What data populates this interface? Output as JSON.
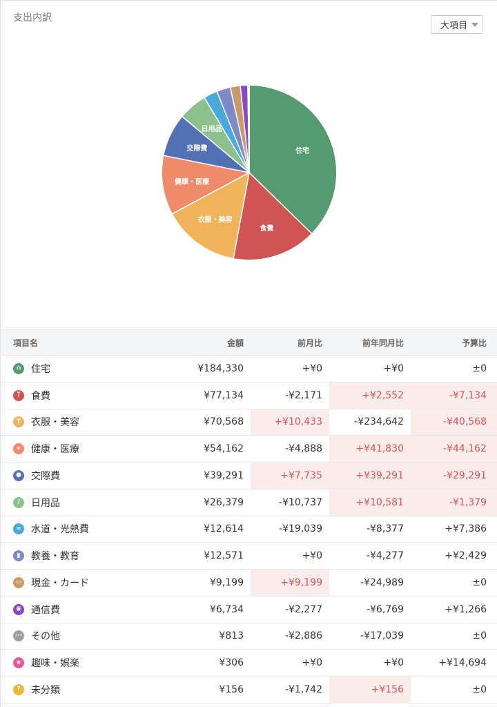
{
  "header": {
    "title": "支出内訳",
    "dropdown_label": "大項目"
  },
  "chart_data": {
    "type": "pie",
    "slices": [
      {
        "label": "住宅",
        "value": 184330,
        "color": "#569a6f"
      },
      {
        "label": "食費",
        "value": 77134,
        "color": "#cf5454"
      },
      {
        "label": "衣服・美容",
        "value": 70568,
        "color": "#efb45a"
      },
      {
        "label": "健康・医療",
        "value": 54162,
        "color": "#ef8a6a"
      },
      {
        "label": "交際費",
        "value": 39291,
        "color": "#5470b4"
      },
      {
        "label": "日用品",
        "value": 26379,
        "color": "#8cc08c"
      },
      {
        "label": "水道・光熱費",
        "value": 12614,
        "color": "#4aa8dc"
      },
      {
        "label": "教養・教育",
        "value": 12571,
        "color": "#7e89c8"
      },
      {
        "label": "現金・カード",
        "value": 9199,
        "color": "#cc9a6a"
      },
      {
        "label": "通信費",
        "value": 6734,
        "color": "#8a48c2"
      },
      {
        "label": "その他",
        "value": 813,
        "color": "#9e9e9e"
      },
      {
        "label": "趣味・娯楽",
        "value": 306,
        "color": "#e45a98"
      },
      {
        "label": "未分類",
        "value": 156,
        "color": "#f0b43c"
      }
    ],
    "shown_labels": [
      "住宅",
      "食費",
      "衣服・美容",
      "健康・医療",
      "交際費",
      "日用品"
    ]
  },
  "table": {
    "headers": {
      "name": "項目名",
      "amount": "金額",
      "mom": "前月比",
      "yoy": "前年同月比",
      "budget": "予算比"
    },
    "rows": [
      {
        "icon": "house-icon",
        "color": "#569a6f",
        "glyph": "⌂",
        "name": "住宅",
        "amount": "¥184,330",
        "mom": "+¥0",
        "mom_neg": false,
        "yoy": "+¥0",
        "yoy_neg": false,
        "budget": "±0",
        "budget_neg": false
      },
      {
        "icon": "fork-knife-icon",
        "color": "#cf5454",
        "glyph": "ᛘ",
        "name": "食費",
        "amount": "¥77,134",
        "mom": "-¥2,171",
        "mom_neg": false,
        "yoy": "+¥2,552",
        "yoy_neg": true,
        "budget": "-¥7,134",
        "budget_neg": true
      },
      {
        "icon": "shirt-icon",
        "color": "#efb45a",
        "glyph": "T",
        "name": "衣服・美容",
        "amount": "¥70,568",
        "mom": "+¥10,433",
        "mom_neg": true,
        "yoy": "-¥234,642",
        "yoy_neg": false,
        "budget": "-¥40,568",
        "budget_neg": true
      },
      {
        "icon": "medical-cross-icon",
        "color": "#ef8a6a",
        "glyph": "+",
        "name": "健康・医療",
        "amount": "¥54,162",
        "mom": "-¥4,888",
        "mom_neg": false,
        "yoy": "+¥41,830",
        "yoy_neg": true,
        "budget": "-¥44,162",
        "budget_neg": true
      },
      {
        "icon": "people-icon",
        "color": "#5470b4",
        "glyph": "●",
        "name": "交際費",
        "amount": "¥39,291",
        "mom": "+¥7,735",
        "mom_neg": true,
        "yoy": "+¥39,291",
        "yoy_neg": true,
        "budget": "-¥29,291",
        "budget_neg": true
      },
      {
        "icon": "bandage-icon",
        "color": "#8cc08c",
        "glyph": "∕",
        "name": "日用品",
        "amount": "¥26,379",
        "mom": "-¥10,737",
        "mom_neg": false,
        "yoy": "+¥10,581",
        "yoy_neg": true,
        "budget": "-¥1,379",
        "budget_neg": true
      },
      {
        "icon": "faucet-icon",
        "color": "#4aa8dc",
        "glyph": "≈",
        "name": "水道・光熱費",
        "amount": "¥12,614",
        "mom": "-¥19,039",
        "mom_neg": false,
        "yoy": "-¥8,377",
        "yoy_neg": false,
        "budget": "+¥7,386",
        "budget_neg": false
      },
      {
        "icon": "book-icon",
        "color": "#7e89c8",
        "glyph": "▮",
        "name": "教養・教育",
        "amount": "¥12,571",
        "mom": "+¥0",
        "mom_neg": false,
        "yoy": "-¥4,277",
        "yoy_neg": false,
        "budget": "+¥2,429",
        "budget_neg": false
      },
      {
        "icon": "wallet-icon",
        "color": "#cc9a6a",
        "glyph": "▭",
        "name": "現金・カード",
        "amount": "¥9,199",
        "mom": "+¥9,199",
        "mom_neg": true,
        "yoy": "-¥24,989",
        "yoy_neg": false,
        "budget": "±0",
        "budget_neg": false
      },
      {
        "icon": "signal-icon",
        "color": "#8a48c2",
        "glyph": "◉",
        "name": "通信費",
        "amount": "¥6,734",
        "mom": "-¥2,277",
        "mom_neg": false,
        "yoy": "-¥6,769",
        "yoy_neg": false,
        "budget": "+¥1,266",
        "budget_neg": false
      },
      {
        "icon": "ellipsis-icon",
        "color": "#9e9e9e",
        "glyph": "···",
        "name": "その他",
        "amount": "¥813",
        "mom": "-¥2,886",
        "mom_neg": false,
        "yoy": "-¥17,039",
        "yoy_neg": false,
        "budget": "±0",
        "budget_neg": false
      },
      {
        "icon": "star-icon",
        "color": "#e45a98",
        "glyph": "★",
        "name": "趣味・娯楽",
        "amount": "¥306",
        "mom": "+¥0",
        "mom_neg": false,
        "yoy": "+¥0",
        "yoy_neg": false,
        "budget": "+¥14,694",
        "budget_neg": false
      },
      {
        "icon": "question-icon",
        "color": "#f0b43c",
        "glyph": "?",
        "name": "未分類",
        "amount": "¥156",
        "mom": "-¥1,742",
        "mom_neg": false,
        "yoy": "+¥156",
        "yoy_neg": true,
        "budget": "±0",
        "budget_neg": false
      }
    ]
  }
}
